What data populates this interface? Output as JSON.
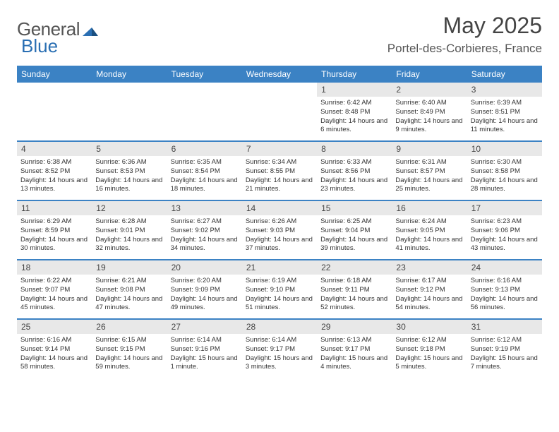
{
  "logo": {
    "part1": "General",
    "part2": "Blue"
  },
  "title": "May 2025",
  "location": "Portel-des-Corbieres, France",
  "day_names": [
    "Sunday",
    "Monday",
    "Tuesday",
    "Wednesday",
    "Thursday",
    "Friday",
    "Saturday"
  ],
  "colors": {
    "header_bg": "#3b82c4",
    "header_fg": "#ffffff",
    "daynum_bg": "#e8e8e8",
    "rule": "#3b82c4",
    "text": "#333333",
    "logo_gray": "#555555",
    "logo_blue": "#2a6fb3"
  },
  "weeks": [
    [
      {
        "n": "",
        "sr": "",
        "ss": "",
        "dl": ""
      },
      {
        "n": "",
        "sr": "",
        "ss": "",
        "dl": ""
      },
      {
        "n": "",
        "sr": "",
        "ss": "",
        "dl": ""
      },
      {
        "n": "",
        "sr": "",
        "ss": "",
        "dl": ""
      },
      {
        "n": "1",
        "sr": "Sunrise: 6:42 AM",
        "ss": "Sunset: 8:48 PM",
        "dl": "Daylight: 14 hours and 6 minutes."
      },
      {
        "n": "2",
        "sr": "Sunrise: 6:40 AM",
        "ss": "Sunset: 8:49 PM",
        "dl": "Daylight: 14 hours and 9 minutes."
      },
      {
        "n": "3",
        "sr": "Sunrise: 6:39 AM",
        "ss": "Sunset: 8:51 PM",
        "dl": "Daylight: 14 hours and 11 minutes."
      }
    ],
    [
      {
        "n": "4",
        "sr": "Sunrise: 6:38 AM",
        "ss": "Sunset: 8:52 PM",
        "dl": "Daylight: 14 hours and 13 minutes."
      },
      {
        "n": "5",
        "sr": "Sunrise: 6:36 AM",
        "ss": "Sunset: 8:53 PM",
        "dl": "Daylight: 14 hours and 16 minutes."
      },
      {
        "n": "6",
        "sr": "Sunrise: 6:35 AM",
        "ss": "Sunset: 8:54 PM",
        "dl": "Daylight: 14 hours and 18 minutes."
      },
      {
        "n": "7",
        "sr": "Sunrise: 6:34 AM",
        "ss": "Sunset: 8:55 PM",
        "dl": "Daylight: 14 hours and 21 minutes."
      },
      {
        "n": "8",
        "sr": "Sunrise: 6:33 AM",
        "ss": "Sunset: 8:56 PM",
        "dl": "Daylight: 14 hours and 23 minutes."
      },
      {
        "n": "9",
        "sr": "Sunrise: 6:31 AM",
        "ss": "Sunset: 8:57 PM",
        "dl": "Daylight: 14 hours and 25 minutes."
      },
      {
        "n": "10",
        "sr": "Sunrise: 6:30 AM",
        "ss": "Sunset: 8:58 PM",
        "dl": "Daylight: 14 hours and 28 minutes."
      }
    ],
    [
      {
        "n": "11",
        "sr": "Sunrise: 6:29 AM",
        "ss": "Sunset: 8:59 PM",
        "dl": "Daylight: 14 hours and 30 minutes."
      },
      {
        "n": "12",
        "sr": "Sunrise: 6:28 AM",
        "ss": "Sunset: 9:01 PM",
        "dl": "Daylight: 14 hours and 32 minutes."
      },
      {
        "n": "13",
        "sr": "Sunrise: 6:27 AM",
        "ss": "Sunset: 9:02 PM",
        "dl": "Daylight: 14 hours and 34 minutes."
      },
      {
        "n": "14",
        "sr": "Sunrise: 6:26 AM",
        "ss": "Sunset: 9:03 PM",
        "dl": "Daylight: 14 hours and 37 minutes."
      },
      {
        "n": "15",
        "sr": "Sunrise: 6:25 AM",
        "ss": "Sunset: 9:04 PM",
        "dl": "Daylight: 14 hours and 39 minutes."
      },
      {
        "n": "16",
        "sr": "Sunrise: 6:24 AM",
        "ss": "Sunset: 9:05 PM",
        "dl": "Daylight: 14 hours and 41 minutes."
      },
      {
        "n": "17",
        "sr": "Sunrise: 6:23 AM",
        "ss": "Sunset: 9:06 PM",
        "dl": "Daylight: 14 hours and 43 minutes."
      }
    ],
    [
      {
        "n": "18",
        "sr": "Sunrise: 6:22 AM",
        "ss": "Sunset: 9:07 PM",
        "dl": "Daylight: 14 hours and 45 minutes."
      },
      {
        "n": "19",
        "sr": "Sunrise: 6:21 AM",
        "ss": "Sunset: 9:08 PM",
        "dl": "Daylight: 14 hours and 47 minutes."
      },
      {
        "n": "20",
        "sr": "Sunrise: 6:20 AM",
        "ss": "Sunset: 9:09 PM",
        "dl": "Daylight: 14 hours and 49 minutes."
      },
      {
        "n": "21",
        "sr": "Sunrise: 6:19 AM",
        "ss": "Sunset: 9:10 PM",
        "dl": "Daylight: 14 hours and 51 minutes."
      },
      {
        "n": "22",
        "sr": "Sunrise: 6:18 AM",
        "ss": "Sunset: 9:11 PM",
        "dl": "Daylight: 14 hours and 52 minutes."
      },
      {
        "n": "23",
        "sr": "Sunrise: 6:17 AM",
        "ss": "Sunset: 9:12 PM",
        "dl": "Daylight: 14 hours and 54 minutes."
      },
      {
        "n": "24",
        "sr": "Sunrise: 6:16 AM",
        "ss": "Sunset: 9:13 PM",
        "dl": "Daylight: 14 hours and 56 minutes."
      }
    ],
    [
      {
        "n": "25",
        "sr": "Sunrise: 6:16 AM",
        "ss": "Sunset: 9:14 PM",
        "dl": "Daylight: 14 hours and 58 minutes."
      },
      {
        "n": "26",
        "sr": "Sunrise: 6:15 AM",
        "ss": "Sunset: 9:15 PM",
        "dl": "Daylight: 14 hours and 59 minutes."
      },
      {
        "n": "27",
        "sr": "Sunrise: 6:14 AM",
        "ss": "Sunset: 9:16 PM",
        "dl": "Daylight: 15 hours and 1 minute."
      },
      {
        "n": "28",
        "sr": "Sunrise: 6:14 AM",
        "ss": "Sunset: 9:17 PM",
        "dl": "Daylight: 15 hours and 3 minutes."
      },
      {
        "n": "29",
        "sr": "Sunrise: 6:13 AM",
        "ss": "Sunset: 9:17 PM",
        "dl": "Daylight: 15 hours and 4 minutes."
      },
      {
        "n": "30",
        "sr": "Sunrise: 6:12 AM",
        "ss": "Sunset: 9:18 PM",
        "dl": "Daylight: 15 hours and 5 minutes."
      },
      {
        "n": "31",
        "sr": "Sunrise: 6:12 AM",
        "ss": "Sunset: 9:19 PM",
        "dl": "Daylight: 15 hours and 7 minutes."
      }
    ]
  ]
}
